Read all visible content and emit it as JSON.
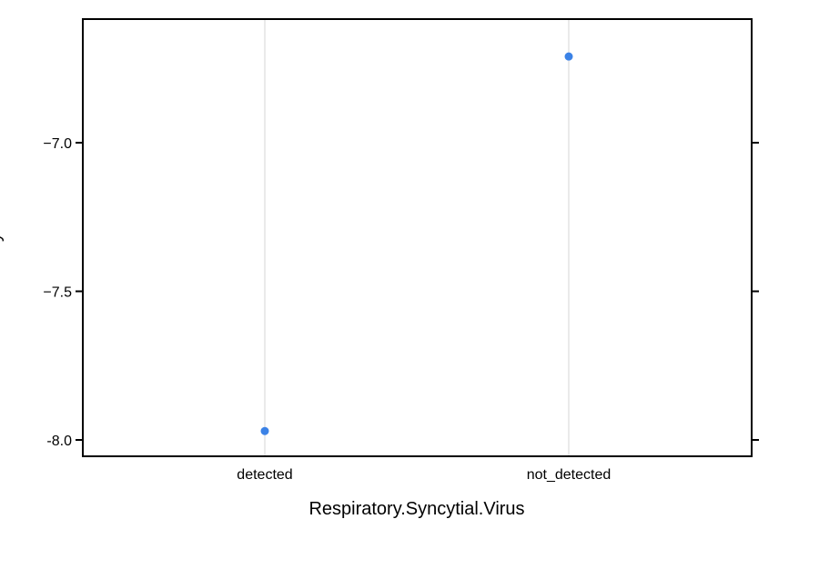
{
  "chart_data": {
    "type": "scatter",
    "title": "",
    "xlabel": "Respiratory.Syncytial.Virus",
    "ylabel": "y",
    "categories": [
      "detected",
      "not_detected"
    ],
    "series": [
      {
        "values": [
          -7.97,
          -6.71
        ]
      }
    ],
    "ylim": [
      -8.05,
      -6.6
    ],
    "yticks": [
      -8.0,
      -7.5,
      -7.0
    ],
    "ytick_labels": [
      "-8.0",
      "−7.5",
      "−7.0"
    ],
    "grid": "vertical lines at categories",
    "legend": "none",
    "colors": {
      "point": "#3b82e6",
      "grid": "#e3e3e3",
      "frame": "#000000"
    }
  }
}
